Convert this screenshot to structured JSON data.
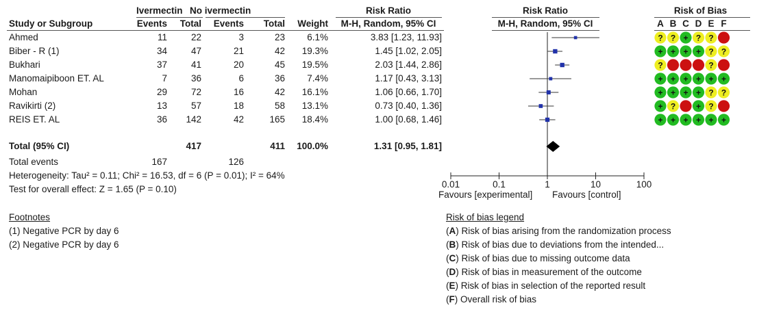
{
  "header": {
    "group1": "Ivermectin",
    "group2": "No ivermectin",
    "risk_ratio": "Risk Ratio",
    "risk_ratio_plot": "Risk Ratio",
    "risk_of_bias": "Risk of Bias",
    "study_col": "Study or Subgroup",
    "events1": "Events",
    "total1": "Total",
    "events2": "Events",
    "total2": "Total",
    "weight": "Weight",
    "method": "M-H, Random, 95% CI",
    "method_plot": "M-H, Random, 95% CI",
    "bias_letters": [
      "A",
      "B",
      "C",
      "D",
      "E",
      "F"
    ]
  },
  "chart_data": {
    "type": "forest",
    "scale": "log",
    "xlim": [
      0.01,
      100
    ],
    "ticks": [
      {
        "value": 0.01,
        "label": "0.01"
      },
      {
        "value": 0.1,
        "label": "0.1"
      },
      {
        "value": 1,
        "label": "1"
      },
      {
        "value": 10,
        "label": "10"
      },
      {
        "value": 100,
        "label": "100"
      }
    ],
    "favours_left": "Favours [experimental]",
    "favours_right": "Favours [control]",
    "studies": [
      {
        "name": "Ahmed",
        "e1": "11",
        "t1": "22",
        "e2": "3",
        "t2": "23",
        "weight": "6.1%",
        "ci_text": "3.83 [1.23, 11.93]",
        "rr": 3.83,
        "lo": 1.23,
        "hi": 11.93,
        "w": 6.1,
        "bias": [
          "?",
          "?",
          "+",
          "?",
          "?",
          "-"
        ]
      },
      {
        "name": "Biber - R (1)",
        "e1": "34",
        "t1": "47",
        "e2": "21",
        "t2": "42",
        "weight": "19.3%",
        "ci_text": "1.45 [1.02, 2.05]",
        "rr": 1.45,
        "lo": 1.02,
        "hi": 2.05,
        "w": 19.3,
        "bias": [
          "+",
          "+",
          "+",
          "+",
          "?",
          "?"
        ]
      },
      {
        "name": "Bukhari",
        "e1": "37",
        "t1": "41",
        "e2": "20",
        "t2": "45",
        "weight": "19.5%",
        "ci_text": "2.03 [1.44, 2.86]",
        "rr": 2.03,
        "lo": 1.44,
        "hi": 2.86,
        "w": 19.5,
        "bias": [
          "?",
          "-",
          "-",
          "-",
          "?",
          "-"
        ]
      },
      {
        "name": "Manomaipiboon ET. AL",
        "e1": "7",
        "t1": "36",
        "e2": "6",
        "t2": "36",
        "weight": "7.4%",
        "ci_text": "1.17 [0.43, 3.13]",
        "rr": 1.17,
        "lo": 0.43,
        "hi": 3.13,
        "w": 7.4,
        "bias": [
          "+",
          "+",
          "+",
          "+",
          "+",
          "+"
        ]
      },
      {
        "name": "Mohan",
        "e1": "29",
        "t1": "72",
        "e2": "16",
        "t2": "42",
        "weight": "16.1%",
        "ci_text": "1.06 [0.66, 1.70]",
        "rr": 1.06,
        "lo": 0.66,
        "hi": 1.7,
        "w": 16.1,
        "bias": [
          "+",
          "+",
          "+",
          "+",
          "?",
          "?"
        ]
      },
      {
        "name": "Ravikirti (2)",
        "e1": "13",
        "t1": "57",
        "e2": "18",
        "t2": "58",
        "weight": "13.1%",
        "ci_text": "0.73 [0.40, 1.36]",
        "rr": 0.73,
        "lo": 0.4,
        "hi": 1.36,
        "w": 13.1,
        "bias": [
          "+",
          "?",
          "-",
          "+",
          "?",
          "-"
        ]
      },
      {
        "name": "REIS ET. AL",
        "e1": "36",
        "t1": "142",
        "e2": "42",
        "t2": "165",
        "weight": "18.4%",
        "ci_text": "1.00 [0.68, 1.46]",
        "rr": 1.0,
        "lo": 0.68,
        "hi": 1.46,
        "w": 18.4,
        "bias": [
          "+",
          "+",
          "+",
          "+",
          "+",
          "+"
        ]
      }
    ],
    "total": {
      "name": "Total (95% CI)",
      "t1": "417",
      "t2": "411",
      "weight": "100.0%",
      "ci_text": "1.31 [0.95, 1.81]",
      "rr": 1.31,
      "lo": 0.95,
      "hi": 1.81
    },
    "total_events": {
      "label": "Total events",
      "e1": "167",
      "e2": "126"
    },
    "heterogeneity": "Heterogeneity: Tau² = 0.11; Chi² = 16.53, df = 6 (P = 0.01); I² = 64%",
    "overall_effect": "Test for overall effect: Z = 1.65 (P = 0.10)"
  },
  "footnotes": {
    "title": "Footnotes",
    "items": [
      "(1) Negative PCR by day 6",
      "(2) Negative PCR by day 6"
    ]
  },
  "legend": {
    "title": "Risk of bias legend",
    "items": [
      {
        "letter": "A",
        "text": " Risk of bias arising from the randomization process"
      },
      {
        "letter": "B",
        "text": " Risk of bias due to deviations from the intended..."
      },
      {
        "letter": "C",
        "text": " Risk of bias due to missing outcome data"
      },
      {
        "letter": "D",
        "text": " Risk of bias in measurement of the outcome"
      },
      {
        "letter": "E",
        "text": " Risk of bias in selection of the reported result"
      },
      {
        "letter": "F",
        "text": " Overall risk of bias"
      }
    ]
  },
  "colors": {
    "low": "#22bb22",
    "some": "#eeee22",
    "high": "#cc1111",
    "marker": "#2233aa"
  }
}
